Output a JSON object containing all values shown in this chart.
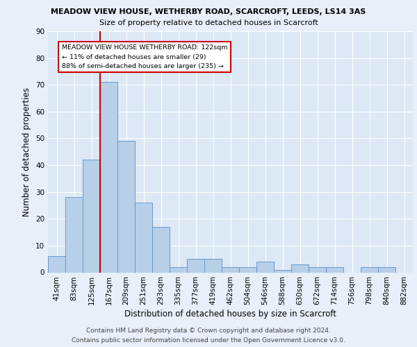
{
  "title1": "MEADOW VIEW HOUSE, WETHERBY ROAD, SCARCROFT, LEEDS, LS14 3AS",
  "title2": "Size of property relative to detached houses in Scarcroft",
  "xlabel": "Distribution of detached houses by size in Scarcroft",
  "ylabel": "Number of detached properties",
  "footnote1": "Contains HM Land Registry data © Crown copyright and database right 2024.",
  "footnote2": "Contains public sector information licensed under the Open Government Licence v3.0.",
  "bar_labels": [
    "41sqm",
    "83sqm",
    "125sqm",
    "167sqm",
    "209sqm",
    "251sqm",
    "293sqm",
    "335sqm",
    "377sqm",
    "419sqm",
    "462sqm",
    "504sqm",
    "546sqm",
    "588sqm",
    "630sqm",
    "672sqm",
    "714sqm",
    "756sqm",
    "798sqm",
    "840sqm",
    "882sqm"
  ],
  "bar_heights": [
    6,
    28,
    42,
    71,
    49,
    26,
    17,
    2,
    5,
    5,
    2,
    2,
    4,
    1,
    3,
    2,
    2,
    0,
    2,
    2,
    0
  ],
  "bar_color": "#b8cfe8",
  "bar_edge_color": "#6699cc",
  "bg_color": "#e8eff8",
  "plot_bg_color": "#dce8f5",
  "grid_color": "#ffffff",
  "red_line_x": 2.5,
  "red_line_color": "#cc0000",
  "ylim": [
    0,
    90
  ],
  "yticks": [
    0,
    10,
    20,
    30,
    40,
    50,
    60,
    70,
    80,
    90
  ],
  "annotation_text": "MEADOW VIEW HOUSE WETHERBY ROAD: 122sqm\n← 11% of detached houses are smaller (29)\n88% of semi-detached houses are larger (235) →",
  "annotation_box_color": "#ffffff",
  "annotation_edge_color": "#cc0000",
  "title1_fontsize": 8.0,
  "title2_fontsize": 8.0,
  "xlabel_fontsize": 8.5,
  "ylabel_fontsize": 8.5,
  "tick_fontsize": 7.5,
  "footnote_fontsize": 6.5
}
